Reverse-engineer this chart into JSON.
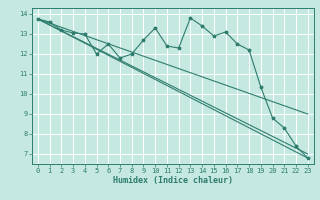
{
  "xlabel": "Humidex (Indice chaleur)",
  "xlim": [
    -0.5,
    23.5
  ],
  "ylim": [
    6.5,
    14.3
  ],
  "yticks": [
    7,
    8,
    9,
    10,
    11,
    12,
    13,
    14
  ],
  "xticks": [
    0,
    1,
    2,
    3,
    4,
    5,
    6,
    7,
    8,
    9,
    10,
    11,
    12,
    13,
    14,
    15,
    16,
    17,
    18,
    19,
    20,
    21,
    22,
    23
  ],
  "background_color": "#c5e8e0",
  "grid_color": "#ffffff",
  "line_color": "#2e7d6e",
  "line1_x": [
    0,
    1,
    2,
    3,
    4,
    5,
    6,
    7,
    8,
    9,
    10,
    11,
    12,
    13,
    14,
    15,
    16,
    17,
    18,
    19,
    20,
    21,
    22,
    23
  ],
  "line1_y": [
    13.75,
    13.6,
    13.2,
    13.05,
    13.0,
    12.0,
    12.5,
    11.8,
    12.0,
    12.7,
    13.3,
    12.4,
    12.3,
    13.8,
    13.4,
    12.9,
    13.1,
    12.5,
    12.2,
    10.35,
    8.8,
    8.3,
    7.4,
    6.8
  ],
  "line2_x": [
    0,
    23
  ],
  "line2_y": [
    13.75,
    6.8
  ],
  "line3_x": [
    0,
    23
  ],
  "line3_y": [
    13.75,
    7.0
  ],
  "line4_x": [
    0,
    23
  ],
  "line4_y": [
    13.75,
    9.0
  ]
}
